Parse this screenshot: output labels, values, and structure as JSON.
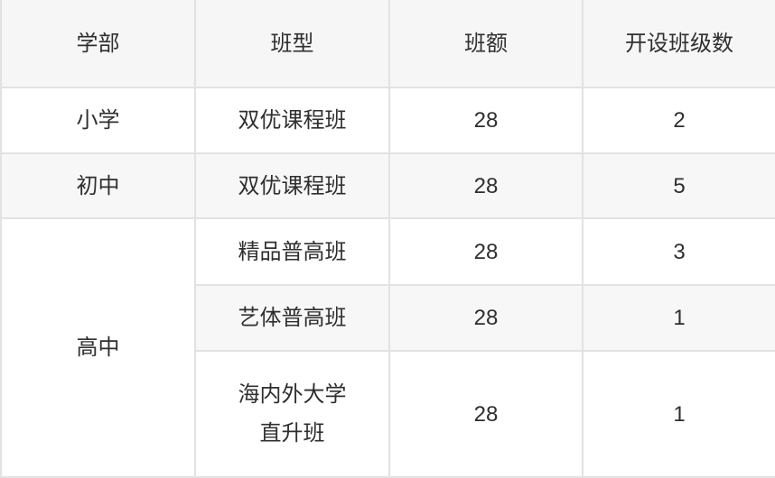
{
  "colors": {
    "header_bg": "#f6f6f7",
    "row_alt_bg": "#f7f7f8",
    "row_bg": "#ffffff",
    "border": "#e2e2e2",
    "text": "#2f2f2f"
  },
  "table": {
    "columns": [
      {
        "label": "学部"
      },
      {
        "label": "班型"
      },
      {
        "label": "班额"
      },
      {
        "label": "开设班级数"
      }
    ],
    "rows": [
      {
        "department": "小学",
        "class_type": "双优课程班",
        "class_size": "28",
        "num_classes": "2"
      },
      {
        "department": "初中",
        "class_type": "双优课程班",
        "class_size": "28",
        "num_classes": "5"
      },
      {
        "department": "高中",
        "class_type": "精品普高班",
        "class_size": "28",
        "num_classes": "3"
      },
      {
        "class_type": "艺体普高班",
        "class_size": "28",
        "num_classes": "1"
      },
      {
        "class_type_lines": [
          "海内外大学",
          "直升班"
        ],
        "class_size": "28",
        "num_classes": "1"
      }
    ]
  }
}
